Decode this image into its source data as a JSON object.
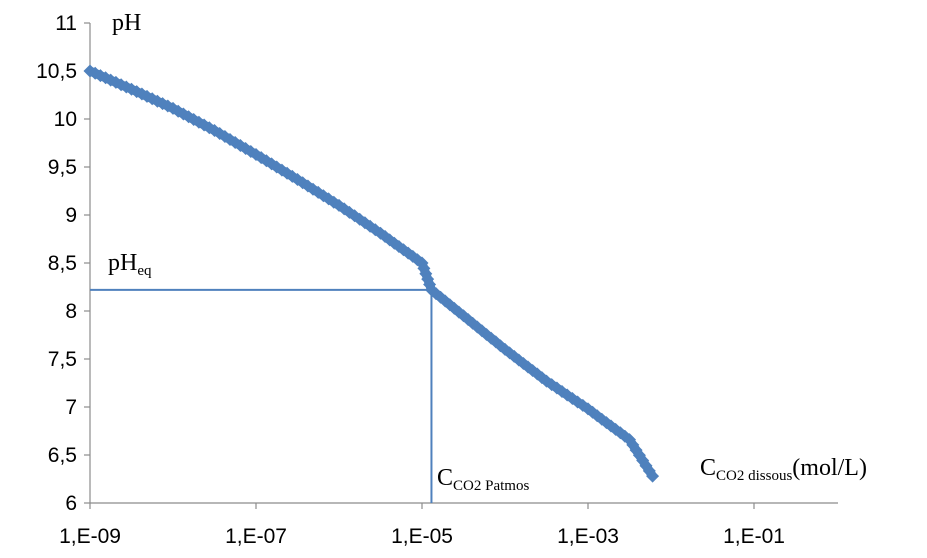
{
  "chart_data": {
    "type": "line",
    "x_scale": "log",
    "xlim": [
      1e-09,
      0.1
    ],
    "ylim": [
      6,
      11
    ],
    "x_ticks": [
      1e-09,
      1e-07,
      1e-05,
      0.001,
      0.1
    ],
    "x_tick_labels": [
      "1,E-09",
      "1,E-07",
      "1,E-05",
      "1,E-03",
      "1,E-01"
    ],
    "y_ticks": [
      6,
      6.5,
      7,
      7.5,
      8,
      8.5,
      9,
      9.5,
      10,
      10.5,
      11
    ],
    "y_tick_labels": [
      "6",
      "6,5",
      "7",
      "7,5",
      "8",
      "8,5",
      "9",
      "9,5",
      "10",
      "10,5",
      "11"
    ],
    "grid": false,
    "legend": "none",
    "series_color": "#4f81bd",
    "series": [
      {
        "x": [
          1e-09,
          3.16e-09,
          1e-08,
          3.16e-08,
          1e-07,
          3.16e-07,
          1e-06,
          3.16e-06,
          1e-05,
          1.3e-05,
          3.16e-05,
          0.0001,
          0.000316,
          0.001,
          0.00316,
          0.006
        ],
        "y": [
          10.5,
          10.31,
          10.11,
          9.88,
          9.63,
          9.37,
          9.1,
          8.81,
          8.5,
          8.22,
          7.95,
          7.6,
          7.27,
          6.98,
          6.66,
          6.28
        ]
      }
    ],
    "y_title": "pH",
    "ref_lines": {
      "x": 1.3e-05,
      "y": 8.22,
      "y_label": "pH",
      "y_label_sub": "eq",
      "x_label": "C",
      "x_label_sub": "CO2 Patmos"
    },
    "x_title": "C",
    "x_title_sub": "CO2 dissous",
    "x_title_unit": "(mol/L)"
  }
}
